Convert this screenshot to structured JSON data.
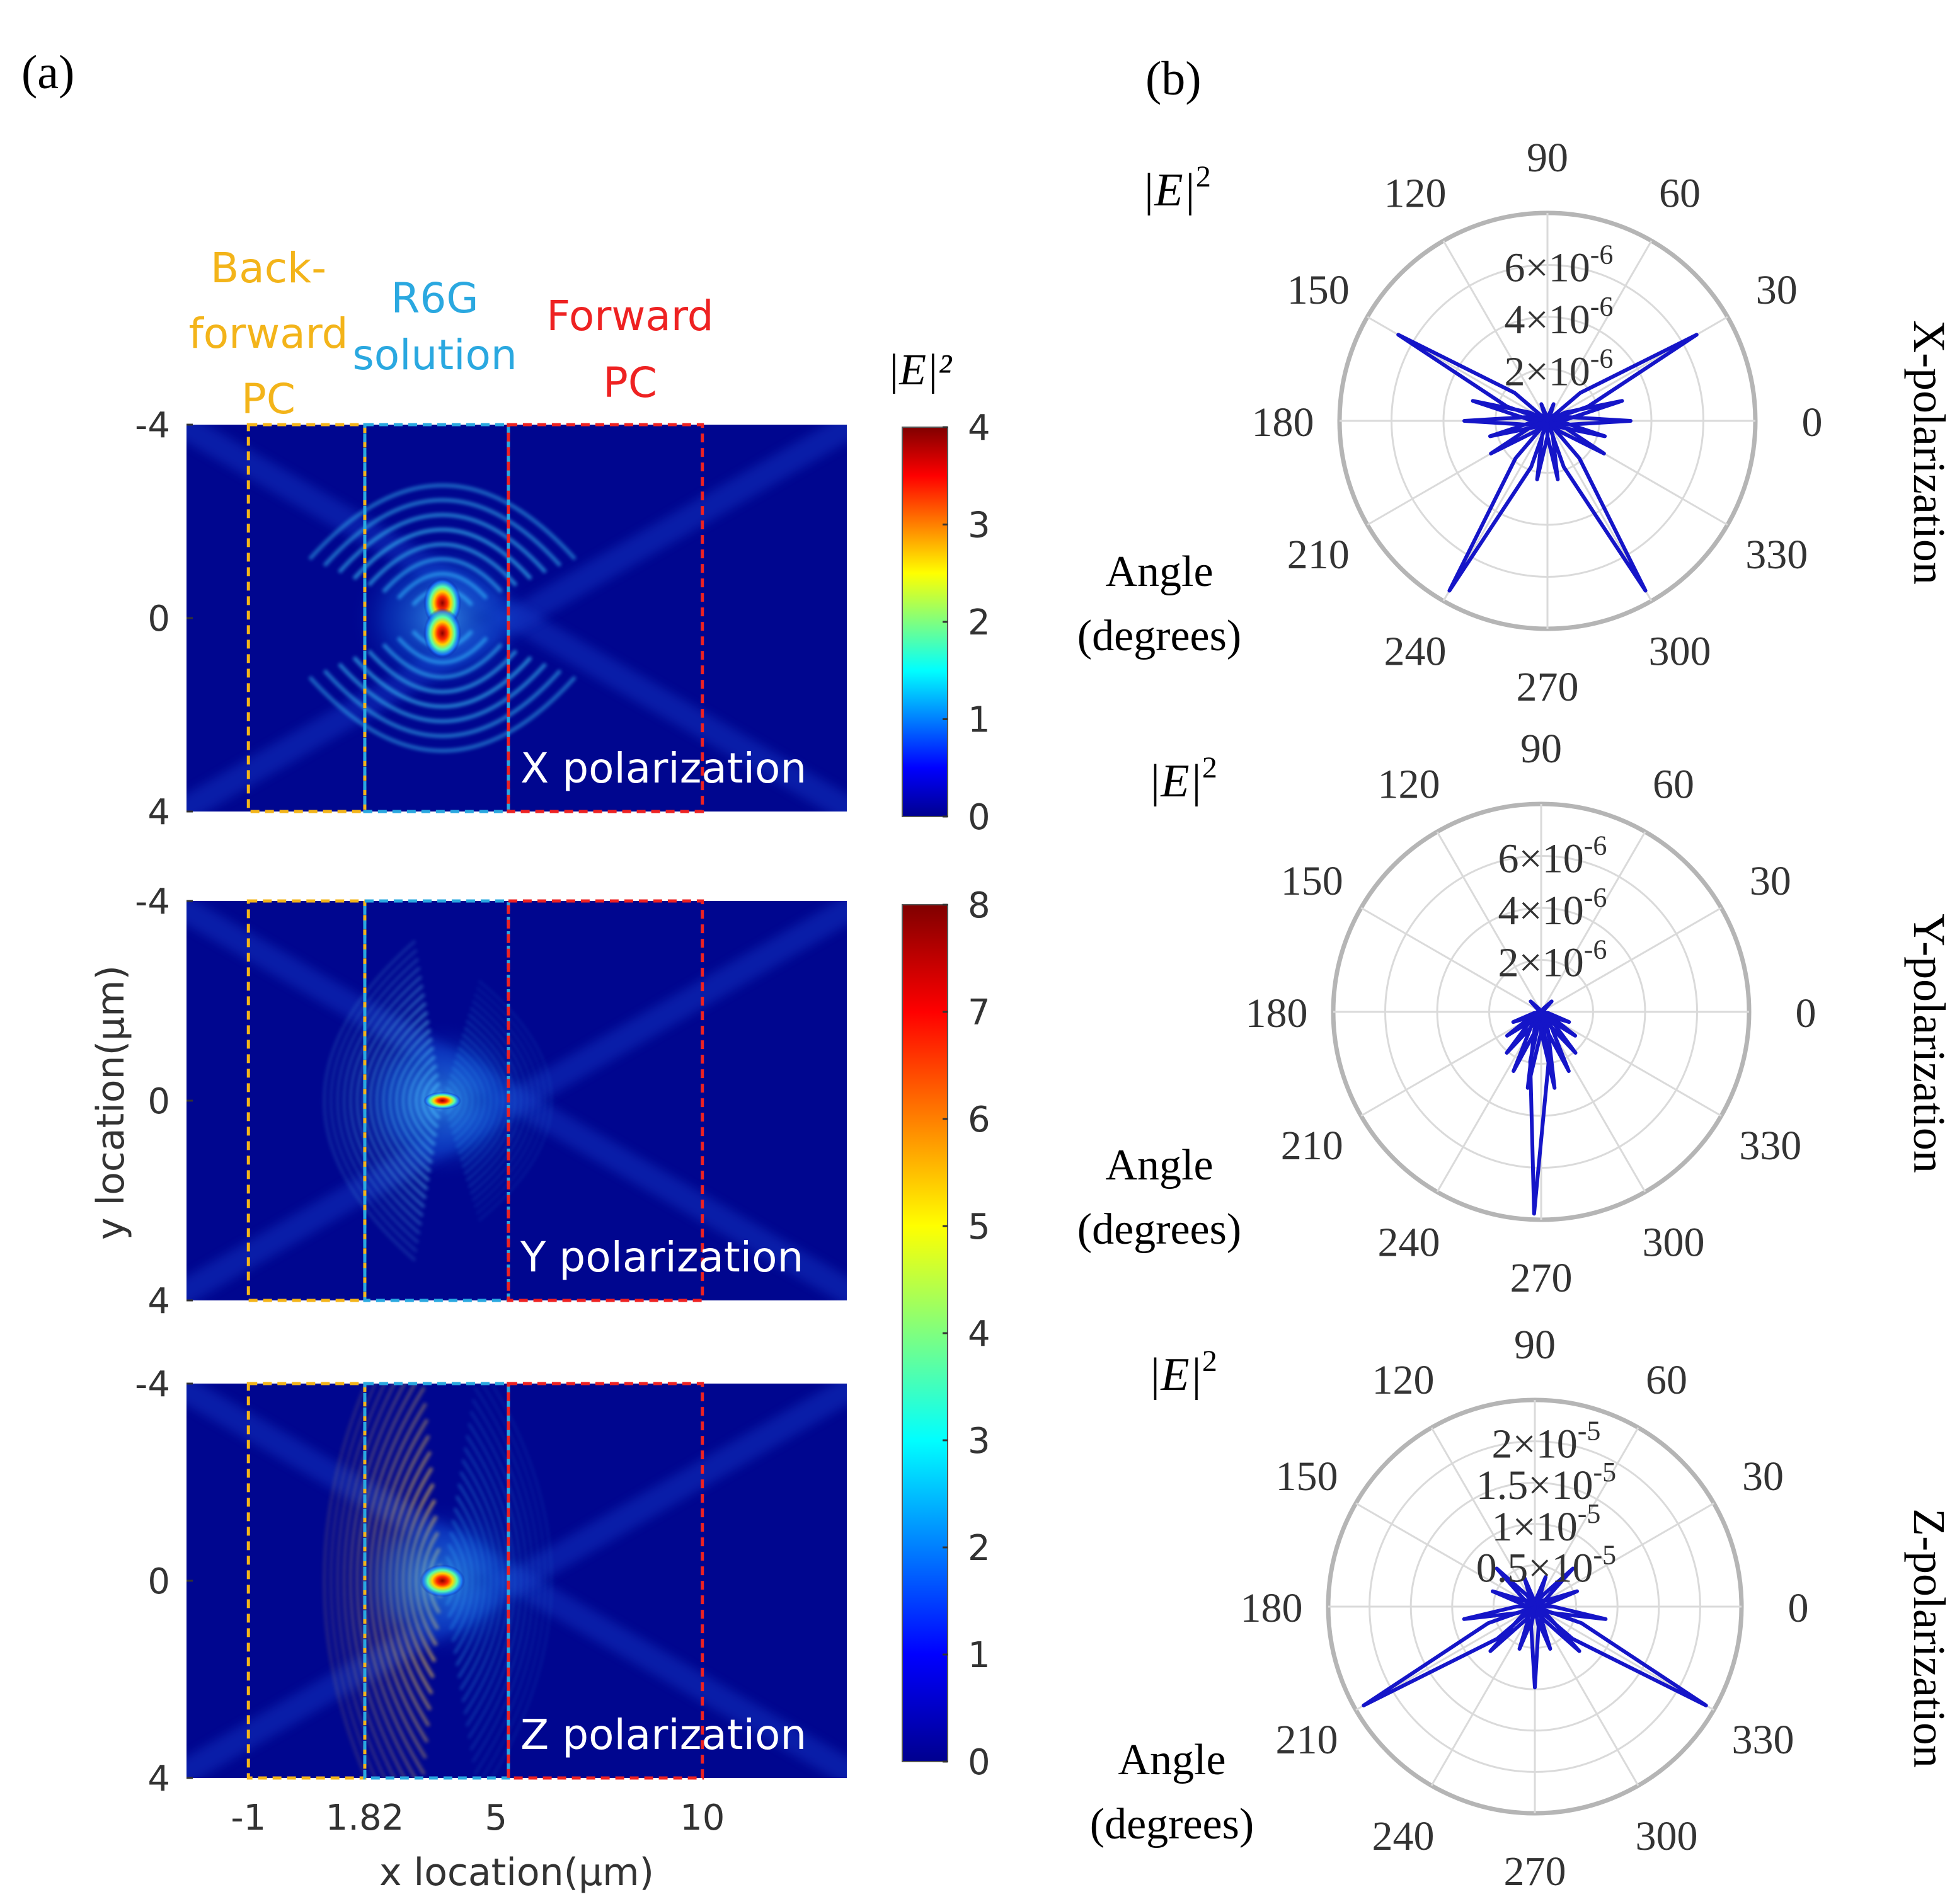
{
  "panel_a_label": "(a)",
  "panel_b_label": "(b)",
  "chart_data": [
    {
      "type": "heatmap",
      "xlabel": "x location(µm)",
      "ylabel": "y location(µm)",
      "x_tick_labels": [
        "-1",
        "1.82",
        "5",
        "10"
      ],
      "y_tick_labels": [
        "-4",
        "0",
        "4"
      ],
      "x_range": [
        -2.5,
        13.5
      ],
      "y_range": [
        -4,
        4
      ],
      "regions": [
        {
          "name": "Back-\nforward\nPC",
          "x_start": -1,
          "x_end": 1.82,
          "color": "#f3b41a"
        },
        {
          "name": "R6G\nsolution",
          "x_start": 1.82,
          "x_end": 5.3,
          "color": "#2aa8e0"
        },
        {
          "name": "Forward\nPC",
          "x_start": 5.3,
          "x_end": 10,
          "color": "#ee2222"
        }
      ],
      "colormap": "jet",
      "panels": [
        {
          "label": "X polarization",
          "colorbar_label": "|E|²",
          "colorbar_ticks": [
            "4",
            "3",
            "2",
            "1",
            "0"
          ],
          "clim": [
            0,
            4
          ],
          "hotspot": {
            "x": 3.7,
            "y": 0
          },
          "pattern": "dipole-x"
        },
        {
          "label": "Y polarization",
          "colorbar_label": "",
          "colorbar_ticks": [
            "8",
            "7",
            "6",
            "5",
            "4",
            "3",
            "2",
            "1",
            "0"
          ],
          "clim": [
            0,
            8
          ],
          "hotspot": {
            "x": 3.7,
            "y": 0
          },
          "pattern": "dipole-y"
        },
        {
          "label": "Z polarization",
          "colorbar_label": "",
          "colorbar_ticks": [],
          "clim": [
            0,
            8
          ],
          "hotspot": {
            "x": 3.7,
            "y": 0
          },
          "pattern": "dipole-z"
        }
      ]
    },
    {
      "type": "polar",
      "theta_label": "Angle\n(degrees)",
      "r_label_prefix": "|E|",
      "r_label_sup": "2",
      "angle_tick_labels": [
        "0",
        "30",
        "60",
        "90",
        "120",
        "150",
        "180",
        "210",
        "240",
        "270",
        "300",
        "330"
      ],
      "series_color": "#1515c8",
      "plots": [
        {
          "title": "X-polarization",
          "rmax": 7e-06,
          "r_ticks": [
            {
              "m": "2×10",
              "e": "-6"
            },
            {
              "m": "4×10",
              "e": "-6"
            },
            {
              "m": "6×10",
              "e": "-6"
            }
          ],
          "lobes": [
            {
              "angle": 30,
              "r": 5.8e-06
            },
            {
              "angle": 150,
              "r": 5.8e-06
            },
            {
              "angle": 300,
              "r": 6.6e-06
            },
            {
              "angle": 240,
              "r": 6.6e-06
            },
            {
              "angle": 15,
              "r": 2.6e-06
            },
            {
              "angle": 165,
              "r": 2.6e-06
            },
            {
              "angle": 0,
              "r": 2.8e-06
            },
            {
              "angle": 180,
              "r": 2.8e-06
            },
            {
              "angle": 345,
              "r": 2e-06
            },
            {
              "angle": 195,
              "r": 2e-06
            },
            {
              "angle": 330,
              "r": 2.2e-06
            },
            {
              "angle": 210,
              "r": 2.2e-06
            },
            {
              "angle": 280,
              "r": 2e-06
            },
            {
              "angle": 260,
              "r": 2e-06
            },
            {
              "angle": 70,
              "r": 6e-07
            },
            {
              "angle": 110,
              "r": 6e-07
            }
          ]
        },
        {
          "title": "Y-polarization",
          "rmax": 7e-06,
          "r_ticks": [
            {
              "m": "2×10",
              "e": "-6"
            },
            {
              "m": "4×10",
              "e": "-6"
            },
            {
              "m": "6×10",
              "e": "-6"
            }
          ],
          "lobes": [
            {
              "angle": 268,
              "r": 6.8e-06
            },
            {
              "angle": 280,
              "r": 2.6e-06
            },
            {
              "angle": 260,
              "r": 2.6e-06
            },
            {
              "angle": 295,
              "r": 2.2e-06
            },
            {
              "angle": 245,
              "r": 2.2e-06
            },
            {
              "angle": 310,
              "r": 1.8e-06
            },
            {
              "angle": 230,
              "r": 1.8e-06
            },
            {
              "angle": 325,
              "r": 1.4e-06
            },
            {
              "angle": 215,
              "r": 1.4e-06
            },
            {
              "angle": 340,
              "r": 1e-06
            },
            {
              "angle": 200,
              "r": 1e-06
            },
            {
              "angle": 45,
              "r": 5e-07
            },
            {
              "angle": 135,
              "r": 5e-07
            }
          ]
        },
        {
          "title": "Z-polarization",
          "rmax": 2.3e-05,
          "r_ticks": [
            {
              "m": "0.5×10",
              "e": "-5"
            },
            {
              "m": "1×10",
              "e": "-5"
            },
            {
              "m": "1.5×10",
              "e": "-5"
            },
            {
              "m": "2×10",
              "e": "-5"
            }
          ],
          "lobes": [
            {
              "angle": 330,
              "r": 2.2e-05
            },
            {
              "angle": 210,
              "r": 2.2e-05
            },
            {
              "angle": 270,
              "r": 9e-06
            },
            {
              "angle": 350,
              "r": 8e-06
            },
            {
              "angle": 190,
              "r": 8e-06
            },
            {
              "angle": 315,
              "r": 7e-06
            },
            {
              "angle": 225,
              "r": 7e-06
            },
            {
              "angle": 20,
              "r": 5e-06
            },
            {
              "angle": 160,
              "r": 5e-06
            },
            {
              "angle": 45,
              "r": 6e-06
            },
            {
              "angle": 135,
              "r": 6e-06
            },
            {
              "angle": 70,
              "r": 3.5e-06
            },
            {
              "angle": 110,
              "r": 3.5e-06
            },
            {
              "angle": 290,
              "r": 5e-06
            },
            {
              "angle": 250,
              "r": 5e-06
            }
          ]
        }
      ]
    }
  ]
}
